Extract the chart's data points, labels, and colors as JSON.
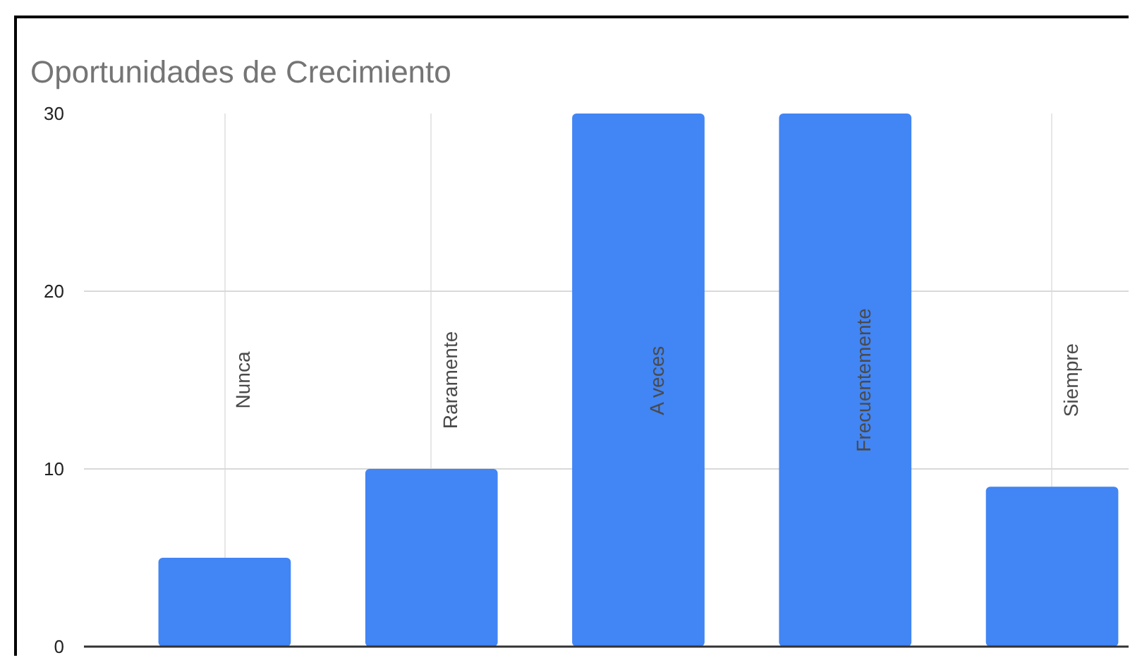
{
  "chart_data": {
    "type": "bar",
    "title": "Oportunidades de Crecimiento",
    "categories": [
      "Nunca",
      "Raramente",
      "A veces",
      "Frecuentemente",
      "Siempre"
    ],
    "values": [
      5,
      10,
      30,
      30,
      9
    ],
    "color": "#4285f4",
    "ylim": [
      0,
      30
    ],
    "yticks": [
      0,
      10,
      20,
      30
    ],
    "grid": true
  }
}
